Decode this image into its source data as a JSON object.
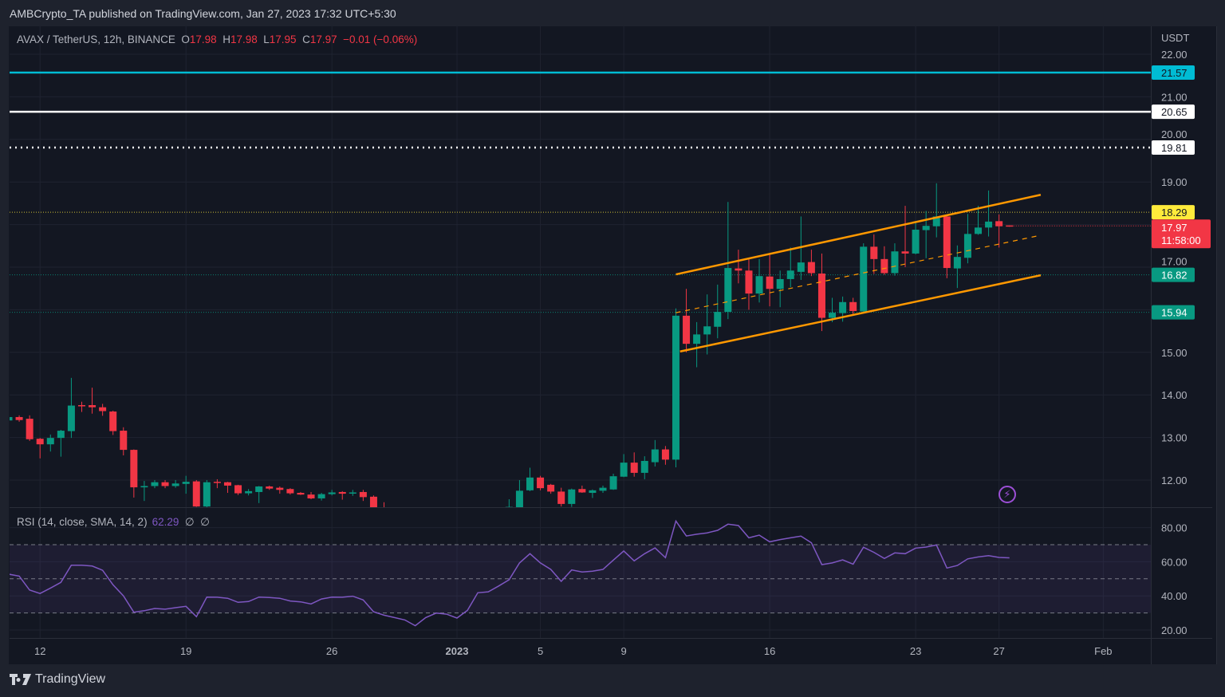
{
  "header": {
    "published": "AMBCrypto_TA published on TradingView.com, Jan 27, 2023 17:32 UTC+5:30"
  },
  "legend": {
    "symbol": "AVAX / TetherUS, 12h, BINANCE",
    "o_label": "O",
    "o": "17.98",
    "h_label": "H",
    "h": "17.98",
    "l_label": "L",
    "l": "17.95",
    "c_label": "C",
    "c": "17.97",
    "change": "−0.01 (−0.06%)"
  },
  "rsi_legend": {
    "name": "RSI (14, close, SMA, 14, 2)",
    "value": "62.29",
    "na1": "∅",
    "na2": "∅"
  },
  "logo": {
    "text": "TradingView"
  },
  "icons": {
    "bolt": "lightning-icon"
  },
  "colors": {
    "up": "#089981",
    "down": "#f23645",
    "channel": "#ff9800",
    "rsi": "#7e57c2",
    "bg": "#131722"
  },
  "chart_data": {
    "type": "candlestick",
    "symbol": "AVAX/USDT",
    "interval": "12h",
    "start": "Dec 10 12:00",
    "currency": "USDT",
    "ylim": [
      11.36,
      22.6
    ],
    "y_ticks": [
      "22.00",
      "21.00",
      "20.00",
      "19.00",
      "17.00",
      "15.00",
      "14.00",
      "13.00",
      "12.00"
    ],
    "x_ticks": [
      {
        "label": "12",
        "day": 1.5
      },
      {
        "label": "19",
        "day": 8.5
      },
      {
        "label": "26",
        "day": 15.5
      },
      {
        "label": "2023",
        "day": 21.5
      },
      {
        "label": "5",
        "day": 25.5
      },
      {
        "label": "9",
        "day": 29.5
      },
      {
        "label": "16",
        "day": 36.5
      },
      {
        "label": "23",
        "day": 43.5
      },
      {
        "label": "27",
        "day": 47.5
      },
      {
        "label": "Feb",
        "day": 52.5
      }
    ],
    "candles_ohlc": [
      [
        13.4,
        13.5,
        13.38,
        13.48
      ],
      [
        13.48,
        13.52,
        13.37,
        13.41
      ],
      [
        13.44,
        13.52,
        12.92,
        12.96
      ],
      [
        12.97,
        12.99,
        12.51,
        12.84
      ],
      [
        12.84,
        13.07,
        12.67,
        12.99
      ],
      [
        12.99,
        13.18,
        12.55,
        13.16
      ],
      [
        13.15,
        14.4,
        12.99,
        13.75
      ],
      [
        13.76,
        13.84,
        13.6,
        13.74
      ],
      [
        13.76,
        14.17,
        13.56,
        13.71
      ],
      [
        13.71,
        13.79,
        13.51,
        13.62
      ],
      [
        13.61,
        13.63,
        13.06,
        13.15
      ],
      [
        13.16,
        13.24,
        12.58,
        12.71
      ],
      [
        12.71,
        12.72,
        11.59,
        11.83
      ],
      [
        11.83,
        11.98,
        11.51,
        11.86
      ],
      [
        11.86,
        12.0,
        11.81,
        11.95
      ],
      [
        11.95,
        12.0,
        11.81,
        11.86
      ],
      [
        11.86,
        12.0,
        11.82,
        11.92
      ],
      [
        11.91,
        12.1,
        11.68,
        11.96
      ],
      [
        11.97,
        12.0,
        11.37,
        11.38
      ],
      [
        11.38,
        12.0,
        11.36,
        11.95
      ],
      [
        11.96,
        12.02,
        11.81,
        11.95
      ],
      [
        11.95,
        11.96,
        11.7,
        11.87
      ],
      [
        11.88,
        11.89,
        11.65,
        11.69
      ],
      [
        11.69,
        11.79,
        11.64,
        11.74
      ],
      [
        11.72,
        11.86,
        11.46,
        11.85
      ],
      [
        11.85,
        11.87,
        11.77,
        11.8
      ],
      [
        11.82,
        11.85,
        11.68,
        11.77
      ],
      [
        11.79,
        11.81,
        11.66,
        11.69
      ],
      [
        11.7,
        11.72,
        11.65,
        11.66
      ],
      [
        11.66,
        11.72,
        11.55,
        11.57
      ],
      [
        11.57,
        11.7,
        11.52,
        11.67
      ],
      [
        11.67,
        11.77,
        11.64,
        11.71
      ],
      [
        11.72,
        11.74,
        11.54,
        11.68
      ],
      [
        11.7,
        11.77,
        11.63,
        11.71
      ],
      [
        11.72,
        11.77,
        11.51,
        11.6
      ],
      [
        11.61,
        11.64,
        11.1,
        11.2
      ],
      [
        11.2,
        11.48,
        10.9,
        11.0
      ],
      null,
      null,
      null,
      null,
      null,
      null,
      null,
      null,
      null,
      null,
      null,
      [
        11.2,
        11.55,
        11.1,
        11.37
      ],
      [
        11.36,
        12.0,
        11.3,
        11.75
      ],
      [
        11.76,
        12.29,
        11.74,
        12.06
      ],
      [
        12.06,
        12.1,
        11.76,
        11.81
      ],
      [
        11.89,
        11.91,
        11.68,
        11.73
      ],
      [
        11.73,
        11.82,
        11.38,
        11.44
      ],
      [
        11.44,
        11.8,
        11.37,
        11.78
      ],
      [
        11.79,
        11.87,
        11.7,
        11.71
      ],
      [
        11.7,
        11.78,
        11.58,
        11.76
      ],
      [
        11.75,
        11.87,
        11.7,
        11.82
      ],
      [
        11.78,
        12.15,
        11.77,
        12.09
      ],
      [
        12.08,
        12.61,
        12.07,
        12.41
      ],
      [
        12.41,
        12.65,
        12.08,
        12.17
      ],
      [
        12.17,
        12.56,
        12.02,
        12.45
      ],
      [
        12.42,
        12.94,
        12.32,
        12.72
      ],
      [
        12.72,
        12.8,
        12.36,
        12.48
      ],
      [
        12.48,
        16.03,
        12.3,
        15.86
      ],
      [
        15.86,
        16.49,
        15.0,
        15.2
      ],
      [
        15.2,
        15.71,
        14.65,
        15.42
      ],
      [
        15.42,
        16.36,
        14.95,
        15.61
      ],
      [
        15.6,
        16.59,
        15.33,
        15.95
      ],
      [
        15.95,
        18.53,
        15.78,
        16.98
      ],
      [
        16.97,
        17.41,
        16.62,
        16.92
      ],
      [
        16.92,
        17.21,
        16.0,
        16.38
      ],
      [
        16.38,
        17.19,
        16.17,
        16.79
      ],
      [
        16.78,
        17.33,
        16.08,
        16.49
      ],
      [
        16.49,
        16.92,
        16.06,
        16.72
      ],
      [
        16.72,
        17.46,
        16.53,
        16.92
      ],
      [
        16.89,
        18.19,
        16.7,
        17.11
      ],
      [
        17.12,
        17.41,
        16.79,
        16.86
      ],
      [
        16.85,
        17.32,
        15.5,
        15.81
      ],
      [
        15.81,
        16.28,
        15.71,
        15.93
      ],
      [
        15.92,
        16.31,
        15.72,
        16.18
      ],
      [
        16.18,
        16.28,
        15.87,
        15.97
      ],
      [
        15.96,
        17.56,
        15.95,
        17.48
      ],
      [
        17.48,
        17.77,
        16.84,
        17.19
      ],
      [
        17.19,
        17.49,
        16.82,
        16.86
      ],
      [
        16.86,
        17.56,
        16.8,
        17.37
      ],
      [
        17.37,
        18.44,
        17.0,
        17.32
      ],
      [
        17.32,
        18.08,
        17.3,
        17.88
      ],
      [
        17.87,
        18.32,
        17.21,
        17.97
      ],
      [
        17.96,
        18.97,
        17.7,
        18.19
      ],
      [
        18.19,
        18.24,
        16.74,
        16.98
      ],
      [
        16.97,
        17.51,
        16.51,
        17.24
      ],
      [
        17.22,
        18.25,
        17.09,
        17.78
      ],
      [
        17.78,
        18.44,
        17.76,
        17.93
      ],
      [
        17.93,
        18.8,
        17.72,
        18.07
      ],
      [
        18.08,
        18.24,
        17.46,
        17.96
      ],
      [
        17.98,
        17.98,
        17.95,
        17.97
      ]
    ],
    "levels": [
      {
        "price": 21.57,
        "label": "21.57",
        "color": "#00bcd4",
        "style": "solid",
        "text": "#131722"
      },
      {
        "price": 20.65,
        "label": "20.65",
        "color": "#ffffff",
        "style": "solid",
        "text": "#131722"
      },
      {
        "price": 19.81,
        "label": "19.81",
        "color": "#ffffff",
        "style": "dotted",
        "text": "#131722"
      },
      {
        "price": 18.29,
        "label": "18.29",
        "color": "#ffeb3b",
        "style": "fine",
        "text": "#131722"
      },
      {
        "price": 16.82,
        "label": "16.82",
        "color": "#089981",
        "style": "fine",
        "text": "#ffffff"
      },
      {
        "price": 15.94,
        "label": "15.94",
        "color": "#089981",
        "style": "fine",
        "text": "#ffffff"
      }
    ],
    "last_price": {
      "price": 17.97,
      "label": "17.97",
      "countdown": "11:58:00"
    },
    "channel": {
      "upper": [
        [
          64,
          16.83
        ],
        [
          99,
          18.7
        ]
      ],
      "middle": [
        [
          64,
          15.93
        ],
        [
          99,
          17.75
        ]
      ],
      "lower": [
        [
          64.4,
          15.02
        ],
        [
          99,
          16.81
        ]
      ]
    },
    "rsi": {
      "period": 14,
      "ylim": [
        14,
        88
      ],
      "ticks": [
        "80.00",
        "60.00",
        "40.00",
        "20.00"
      ],
      "bands": [
        70,
        50,
        30
      ],
      "values": [
        52.7,
        51.6,
        43.4,
        41.4,
        44.6,
        47.9,
        58.0,
        58.0,
        57.5,
        55.0,
        46.5,
        40.0,
        30.4,
        31.3,
        32.6,
        32.2,
        33.1,
        33.9,
        27.8,
        39.3,
        39.2,
        38.6,
        36.2,
        36.7,
        39.3,
        39.0,
        38.6,
        37.0,
        36.5,
        35.3,
        38.2,
        39.3,
        39.2,
        39.8,
        37.6,
        30.7,
        28.7,
        27.3,
        25.9,
        22.5,
        27.3,
        29.9,
        29.3,
        27.0,
        31.5,
        41.8,
        42.4,
        45.8,
        49.5,
        59.3,
        64.7,
        59.3,
        55.5,
        48.5,
        55.2,
        54.0,
        54.5,
        55.5,
        61.0,
        66.3,
        60.5,
        64.7,
        68.1,
        62.4,
        83.9,
        75.1,
        76.1,
        76.9,
        78.4,
        82.0,
        81.2,
        74.0,
        75.6,
        71.7,
        73.0,
        74.0,
        75.0,
        71.1,
        58.3,
        59.3,
        61.1,
        58.6,
        68.5,
        65.5,
        61.9,
        65.2,
        64.7,
        68.0,
        68.6,
        69.8,
        56.3,
        57.8,
        61.7,
        62.8,
        63.6,
        62.5,
        62.29
      ]
    }
  }
}
